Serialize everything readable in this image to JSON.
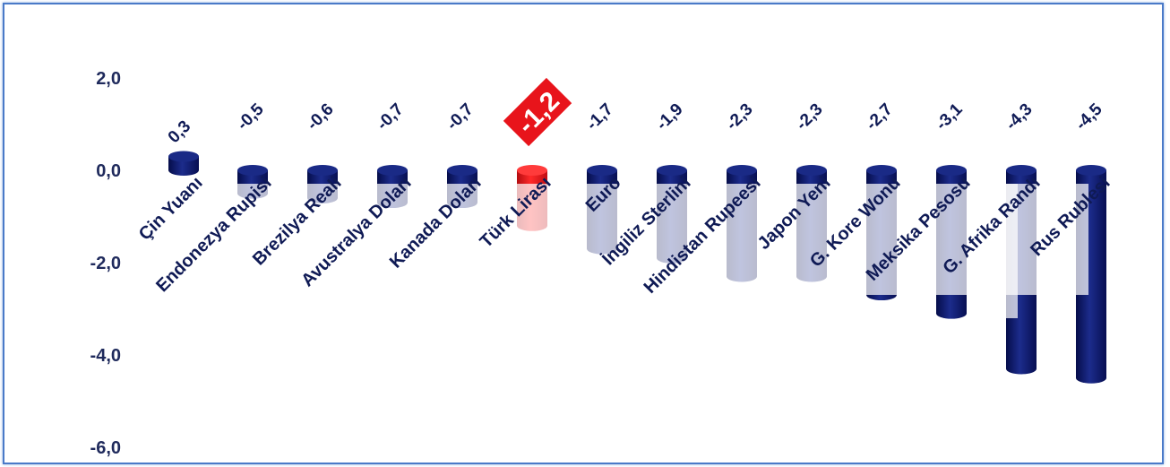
{
  "chart_data": {
    "type": "bar",
    "title": "",
    "xlabel": "",
    "ylabel": "",
    "ylim": [
      -6,
      2
    ],
    "yticks": [
      "2,0",
      "0,0",
      "-2,0",
      "-4,0",
      "-6,0"
    ],
    "categories": [
      "Çin Yuanı",
      "Endonezya Rupisi",
      "Brezilya Reali",
      "Avustralya Doları",
      "Kanada Doları",
      "Türk Lirası",
      "Euro",
      "İngiliz Sterlini",
      "Hindistan Rupeesi",
      "Japon Yeni",
      "G. Kore Wonu",
      "Meksika Pesosu",
      "G. Afrika Randı",
      "Rus Rublesi"
    ],
    "values": [
      0.3,
      -0.5,
      -0.6,
      -0.7,
      -0.7,
      -1.2,
      -1.7,
      -1.9,
      -2.3,
      -2.3,
      -2.7,
      -3.1,
      -4.3,
      -4.5
    ],
    "value_labels": [
      "0,3",
      "-0,5",
      "-0,6",
      "-0,7",
      "-0,7",
      "-1,2",
      "-1,7",
      "-1,9",
      "-2,3",
      "-2,3",
      "-2,7",
      "-3,1",
      "-4,3",
      "-4,5"
    ],
    "highlight_index": 5,
    "colors": {
      "bar": "#0d1a6b",
      "highlight": "#e8141b",
      "text": "#0f1a55",
      "frame": "#4a7ac8"
    },
    "grid": false,
    "legend": "none"
  }
}
